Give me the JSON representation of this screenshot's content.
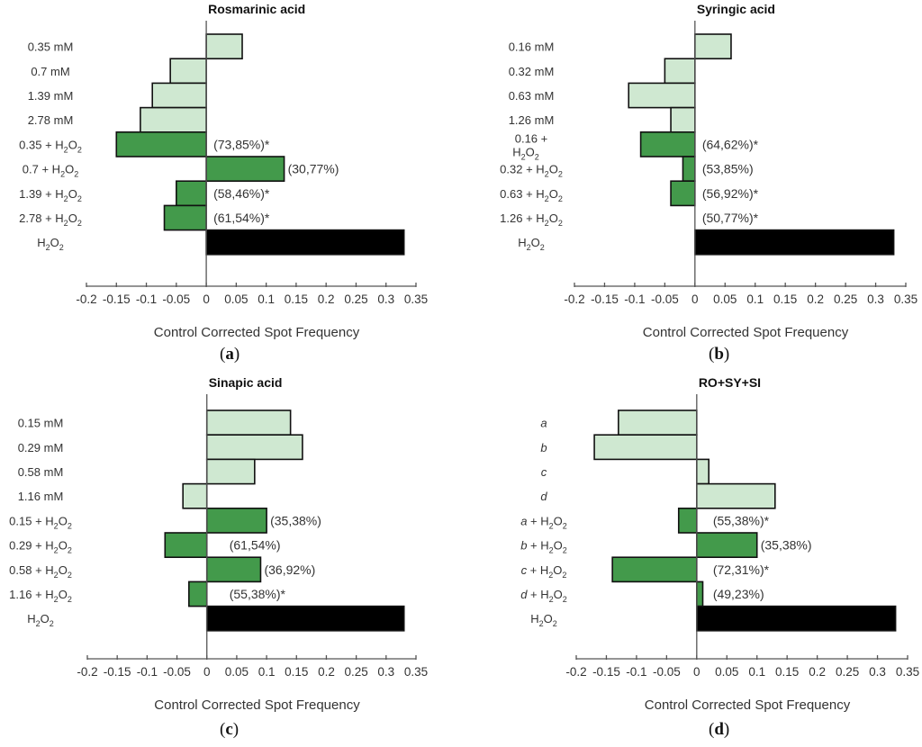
{
  "colors": {
    "light_bar": "#cfe8d1",
    "dark_bar": "#439a4b",
    "control_bar": "#000000",
    "outline": "#111111",
    "axis": "#555555"
  },
  "chart_data": [
    {
      "type": "bar",
      "orientation": "horizontal",
      "panel": "a",
      "caption": "a",
      "title": "Rosmarinic acid",
      "xlabel": "Control Corrected Spot Frequency",
      "ylabel": "",
      "xlim": [
        -0.2,
        0.35
      ],
      "xticks": [
        "-0.2",
        "-0.15",
        "-0.1",
        "-0.05",
        "0",
        "0.05",
        "0.1",
        "0.15",
        "0.2",
        "0.25",
        "0.3",
        "0.35"
      ],
      "categories": [
        {
          "label": "0.35 mM",
          "italic": false,
          "h2o2": false
        },
        {
          "label": "0.7 mM",
          "italic": false,
          "h2o2": false
        },
        {
          "label": "1.39 mM",
          "italic": false,
          "h2o2": false
        },
        {
          "label": "2.78 mM",
          "italic": false,
          "h2o2": false
        },
        {
          "label": "0.35 + ",
          "italic": false,
          "h2o2": true
        },
        {
          "label": "0.7 + ",
          "italic": false,
          "h2o2": true
        },
        {
          "label": "1.39 + ",
          "italic": false,
          "h2o2": true
        },
        {
          "label": "2.78 + ",
          "italic": false,
          "h2o2": true
        },
        {
          "label": "",
          "italic": false,
          "h2o2": true
        }
      ],
      "values": [
        0.06,
        -0.06,
        -0.09,
        -0.11,
        -0.15,
        0.13,
        -0.05,
        -0.07,
        0.33
      ],
      "bar_types": [
        "light",
        "light",
        "light",
        "light",
        "dark",
        "dark",
        "dark",
        "dark",
        "control"
      ],
      "annotations": [
        null,
        null,
        null,
        null,
        "(73,85%)*",
        "(30,77%)",
        "(58,46%)*",
        "(61,54%)*",
        null
      ]
    },
    {
      "type": "bar",
      "orientation": "horizontal",
      "panel": "b",
      "caption": "b",
      "title": "Syringic acid",
      "xlabel": "Control Corrected Spot Frequency",
      "ylabel": "",
      "xlim": [
        -0.2,
        0.35
      ],
      "xticks": [
        "-0.2",
        "-0.15",
        "-0.1",
        "-0.05",
        "0",
        "0.05",
        "0.1",
        "0.15",
        "0.2",
        "0.25",
        "0.3",
        "0.35"
      ],
      "categories": [
        {
          "label": "0.16 mM",
          "italic": false,
          "h2o2": false
        },
        {
          "label": "0.32 mM",
          "italic": false,
          "h2o2": false
        },
        {
          "label": "0.63 mM",
          "italic": false,
          "h2o2": false
        },
        {
          "label": "1.26 mM",
          "italic": false,
          "h2o2": false
        },
        {
          "label": "0.16 +",
          "italic": false,
          "h2o2": true,
          "wrap": true
        },
        {
          "label": "0.32 + ",
          "italic": false,
          "h2o2": true
        },
        {
          "label": "0.63 + ",
          "italic": false,
          "h2o2": true
        },
        {
          "label": "1.26 + ",
          "italic": false,
          "h2o2": true
        },
        {
          "label": "",
          "italic": false,
          "h2o2": true
        }
      ],
      "values": [
        0.06,
        -0.05,
        -0.11,
        -0.04,
        -0.09,
        -0.02,
        -0.04,
        0.0,
        0.33
      ],
      "bar_types": [
        "light",
        "light",
        "light",
        "light",
        "dark",
        "dark",
        "dark",
        "dark",
        "control"
      ],
      "annotations": [
        null,
        null,
        null,
        null,
        "(64,62%)*",
        "(53,85%)",
        "(56,92%)*",
        "(50,77%)*",
        null
      ]
    },
    {
      "type": "bar",
      "orientation": "horizontal",
      "panel": "c",
      "caption": "c",
      "title": "Sinapic acid",
      "xlabel": "Control Corrected Spot Frequency",
      "ylabel": "",
      "xlim": [
        -0.2,
        0.35
      ],
      "xticks": [
        "-0.2",
        "-0.15",
        "-0.1",
        "-0.05",
        "0",
        "0.05",
        "0.1",
        "0.15",
        "0.2",
        "0.25",
        "0.3",
        "0.35"
      ],
      "categories": [
        {
          "label": "0.15 mM",
          "italic": false,
          "h2o2": false
        },
        {
          "label": "0.29 mM",
          "italic": false,
          "h2o2": false
        },
        {
          "label": "0.58 mM",
          "italic": false,
          "h2o2": false
        },
        {
          "label": "1.16 mM",
          "italic": false,
          "h2o2": false
        },
        {
          "label": "0.15 + ",
          "italic": false,
          "h2o2": true
        },
        {
          "label": "0.29 + ",
          "italic": false,
          "h2o2": true
        },
        {
          "label": "0.58 + ",
          "italic": false,
          "h2o2": true
        },
        {
          "label": "1.16 + ",
          "italic": false,
          "h2o2": true
        },
        {
          "label": "",
          "italic": false,
          "h2o2": true
        }
      ],
      "values": [
        0.14,
        0.16,
        0.08,
        -0.04,
        0.1,
        -0.07,
        0.09,
        -0.03,
        0.33
      ],
      "bar_types": [
        "light",
        "light",
        "light",
        "light",
        "dark",
        "dark",
        "dark",
        "dark",
        "control"
      ],
      "annotations": [
        null,
        null,
        null,
        null,
        "(35,38%)",
        "(61,54%)",
        "(36,92%)",
        "(55,38%)*",
        null
      ]
    },
    {
      "type": "bar",
      "orientation": "horizontal",
      "panel": "d",
      "caption": "d",
      "title": "RO+SY+SI",
      "xlabel": "Control Corrected Spot Frequency",
      "ylabel": "",
      "xlim": [
        -0.2,
        0.35
      ],
      "xticks": [
        "-0.2",
        "-0.15",
        "-0.1",
        "-0.05",
        "0",
        "0.05",
        "0.1",
        "0.15",
        "0.2",
        "0.25",
        "0.3",
        "0.35"
      ],
      "categories": [
        {
          "label": "a",
          "italic": true,
          "h2o2": false
        },
        {
          "label": "b",
          "italic": true,
          "h2o2": false
        },
        {
          "label": "c",
          "italic": true,
          "h2o2": false
        },
        {
          "label": "d",
          "italic": true,
          "h2o2": false
        },
        {
          "label": "a",
          "italic": true,
          "h2o2": true,
          "plus": true
        },
        {
          "label": "b",
          "italic": true,
          "h2o2": true,
          "plus": true
        },
        {
          "label": "c",
          "italic": true,
          "h2o2": true,
          "plus": true
        },
        {
          "label": "d",
          "italic": true,
          "h2o2": true,
          "plus": true
        },
        {
          "label": "",
          "italic": false,
          "h2o2": true
        }
      ],
      "values": [
        -0.13,
        -0.17,
        0.02,
        0.13,
        -0.03,
        0.1,
        -0.14,
        0.01,
        0.33
      ],
      "bar_types": [
        "light",
        "light",
        "light",
        "light",
        "dark",
        "dark",
        "dark",
        "dark",
        "control"
      ],
      "annotations": [
        null,
        null,
        null,
        null,
        "(55,38%)*",
        "(35,38%)",
        "(72,31%)*",
        "(49,23%)",
        null
      ]
    }
  ]
}
